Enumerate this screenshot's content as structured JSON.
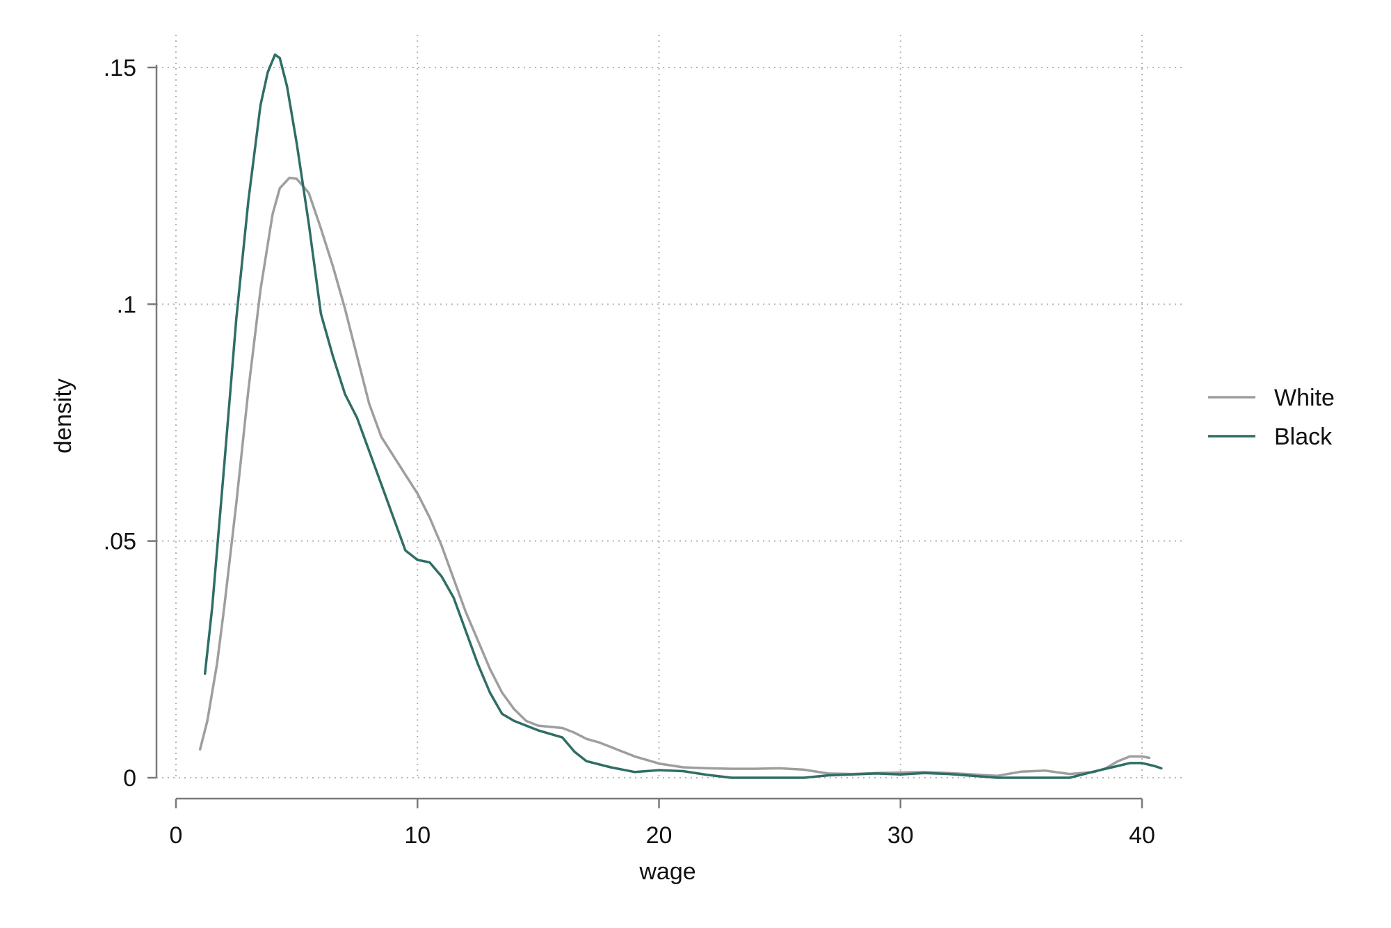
{
  "chart_data": {
    "type": "line",
    "title": "",
    "xlabel": "wage",
    "ylabel": "density",
    "xlim": [
      0,
      40
    ],
    "ylim": [
      0,
      0.15
    ],
    "x_ticks": [
      {
        "value": 0,
        "label": "0"
      },
      {
        "value": 10,
        "label": "10"
      },
      {
        "value": 20,
        "label": "20"
      },
      {
        "value": 30,
        "label": "30"
      },
      {
        "value": 40,
        "label": "40"
      }
    ],
    "y_ticks": [
      {
        "value": 0,
        "label": "0"
      },
      {
        "value": 0.05,
        "label": ".05"
      },
      {
        "value": 0.1,
        "label": ".1"
      },
      {
        "value": 0.15,
        "label": ".15"
      }
    ],
    "grid": true,
    "legend_position": "right",
    "series": [
      {
        "name": "White",
        "color": "#9e9e9e",
        "points": [
          [
            1.0,
            0.006
          ],
          [
            1.3,
            0.012
          ],
          [
            1.7,
            0.024
          ],
          [
            2.0,
            0.036
          ],
          [
            2.5,
            0.058
          ],
          [
            3.0,
            0.082
          ],
          [
            3.5,
            0.103
          ],
          [
            4.0,
            0.119
          ],
          [
            4.3,
            0.1245
          ],
          [
            4.7,
            0.1267
          ],
          [
            5.0,
            0.1265
          ],
          [
            5.5,
            0.1235
          ],
          [
            6.0,
            0.116
          ],
          [
            6.5,
            0.108
          ],
          [
            7.0,
            0.099
          ],
          [
            7.5,
            0.089
          ],
          [
            8.0,
            0.079
          ],
          [
            8.5,
            0.072
          ],
          [
            9.0,
            0.068
          ],
          [
            9.5,
            0.064
          ],
          [
            10.0,
            0.06
          ],
          [
            10.5,
            0.055
          ],
          [
            11.0,
            0.049
          ],
          [
            11.5,
            0.042
          ],
          [
            12.0,
            0.035
          ],
          [
            12.5,
            0.029
          ],
          [
            13.0,
            0.023
          ],
          [
            13.5,
            0.018
          ],
          [
            14.0,
            0.0145
          ],
          [
            14.5,
            0.012
          ],
          [
            15.0,
            0.011
          ],
          [
            16.0,
            0.0105
          ],
          [
            16.5,
            0.0095
          ],
          [
            17.0,
            0.0082
          ],
          [
            17.5,
            0.0075
          ],
          [
            18.0,
            0.0065
          ],
          [
            19.0,
            0.0045
          ],
          [
            20.0,
            0.003
          ],
          [
            21.0,
            0.0022
          ],
          [
            22.0,
            0.002
          ],
          [
            23.0,
            0.0019
          ],
          [
            24.0,
            0.0019
          ],
          [
            25.0,
            0.002
          ],
          [
            26.0,
            0.0017
          ],
          [
            27.0,
            0.0009
          ],
          [
            28.0,
            0.0008
          ],
          [
            29.0,
            0.001
          ],
          [
            30.0,
            0.0011
          ],
          [
            31.0,
            0.0012
          ],
          [
            32.0,
            0.001
          ],
          [
            33.0,
            0.0007
          ],
          [
            34.0,
            0.0004
          ],
          [
            35.0,
            0.0013
          ],
          [
            36.0,
            0.0015
          ],
          [
            37.0,
            0.0008
          ],
          [
            38.0,
            0.0012
          ],
          [
            38.5,
            0.002
          ],
          [
            39.0,
            0.0035
          ],
          [
            39.5,
            0.0045
          ],
          [
            40.0,
            0.0045
          ],
          [
            40.3,
            0.0042
          ]
        ]
      },
      {
        "name": "Black",
        "color": "#2f6e65",
        "points": [
          [
            1.2,
            0.022
          ],
          [
            1.5,
            0.036
          ],
          [
            2.0,
            0.066
          ],
          [
            2.5,
            0.097
          ],
          [
            3.0,
            0.122
          ],
          [
            3.5,
            0.142
          ],
          [
            3.8,
            0.149
          ],
          [
            4.1,
            0.1527
          ],
          [
            4.3,
            0.152
          ],
          [
            4.6,
            0.146
          ],
          [
            5.0,
            0.134
          ],
          [
            5.5,
            0.117
          ],
          [
            6.0,
            0.098
          ],
          [
            6.5,
            0.089
          ],
          [
            7.0,
            0.081
          ],
          [
            7.5,
            0.076
          ],
          [
            8.0,
            0.069
          ],
          [
            8.5,
            0.062
          ],
          [
            9.0,
            0.055
          ],
          [
            9.5,
            0.048
          ],
          [
            10.0,
            0.046
          ],
          [
            10.5,
            0.0455
          ],
          [
            11.0,
            0.0425
          ],
          [
            11.5,
            0.038
          ],
          [
            12.0,
            0.031
          ],
          [
            12.5,
            0.024
          ],
          [
            13.0,
            0.018
          ],
          [
            13.5,
            0.0135
          ],
          [
            14.0,
            0.012
          ],
          [
            15.0,
            0.01
          ],
          [
            16.0,
            0.0085
          ],
          [
            16.5,
            0.0055
          ],
          [
            17.0,
            0.0035
          ],
          [
            18.0,
            0.0022
          ],
          [
            19.0,
            0.0012
          ],
          [
            20.0,
            0.0016
          ],
          [
            21.0,
            0.0014
          ],
          [
            22.0,
            0.0006
          ],
          [
            23.0,
            0.0
          ],
          [
            24.0,
            0.0
          ],
          [
            25.0,
            0.0
          ],
          [
            26.0,
            0.0
          ],
          [
            27.0,
            0.0005
          ],
          [
            28.0,
            0.0007
          ],
          [
            29.0,
            0.0009
          ],
          [
            30.0,
            0.0007
          ],
          [
            31.0,
            0.001
          ],
          [
            32.0,
            0.0008
          ],
          [
            33.0,
            0.0004
          ],
          [
            34.0,
            0.0
          ],
          [
            35.0,
            0.0
          ],
          [
            36.0,
            0.0
          ],
          [
            37.0,
            0.0
          ],
          [
            38.0,
            0.0013
          ],
          [
            39.0,
            0.0025
          ],
          [
            39.5,
            0.0031
          ],
          [
            40.0,
            0.0031
          ],
          [
            40.5,
            0.0025
          ],
          [
            40.8,
            0.002
          ]
        ]
      }
    ]
  }
}
